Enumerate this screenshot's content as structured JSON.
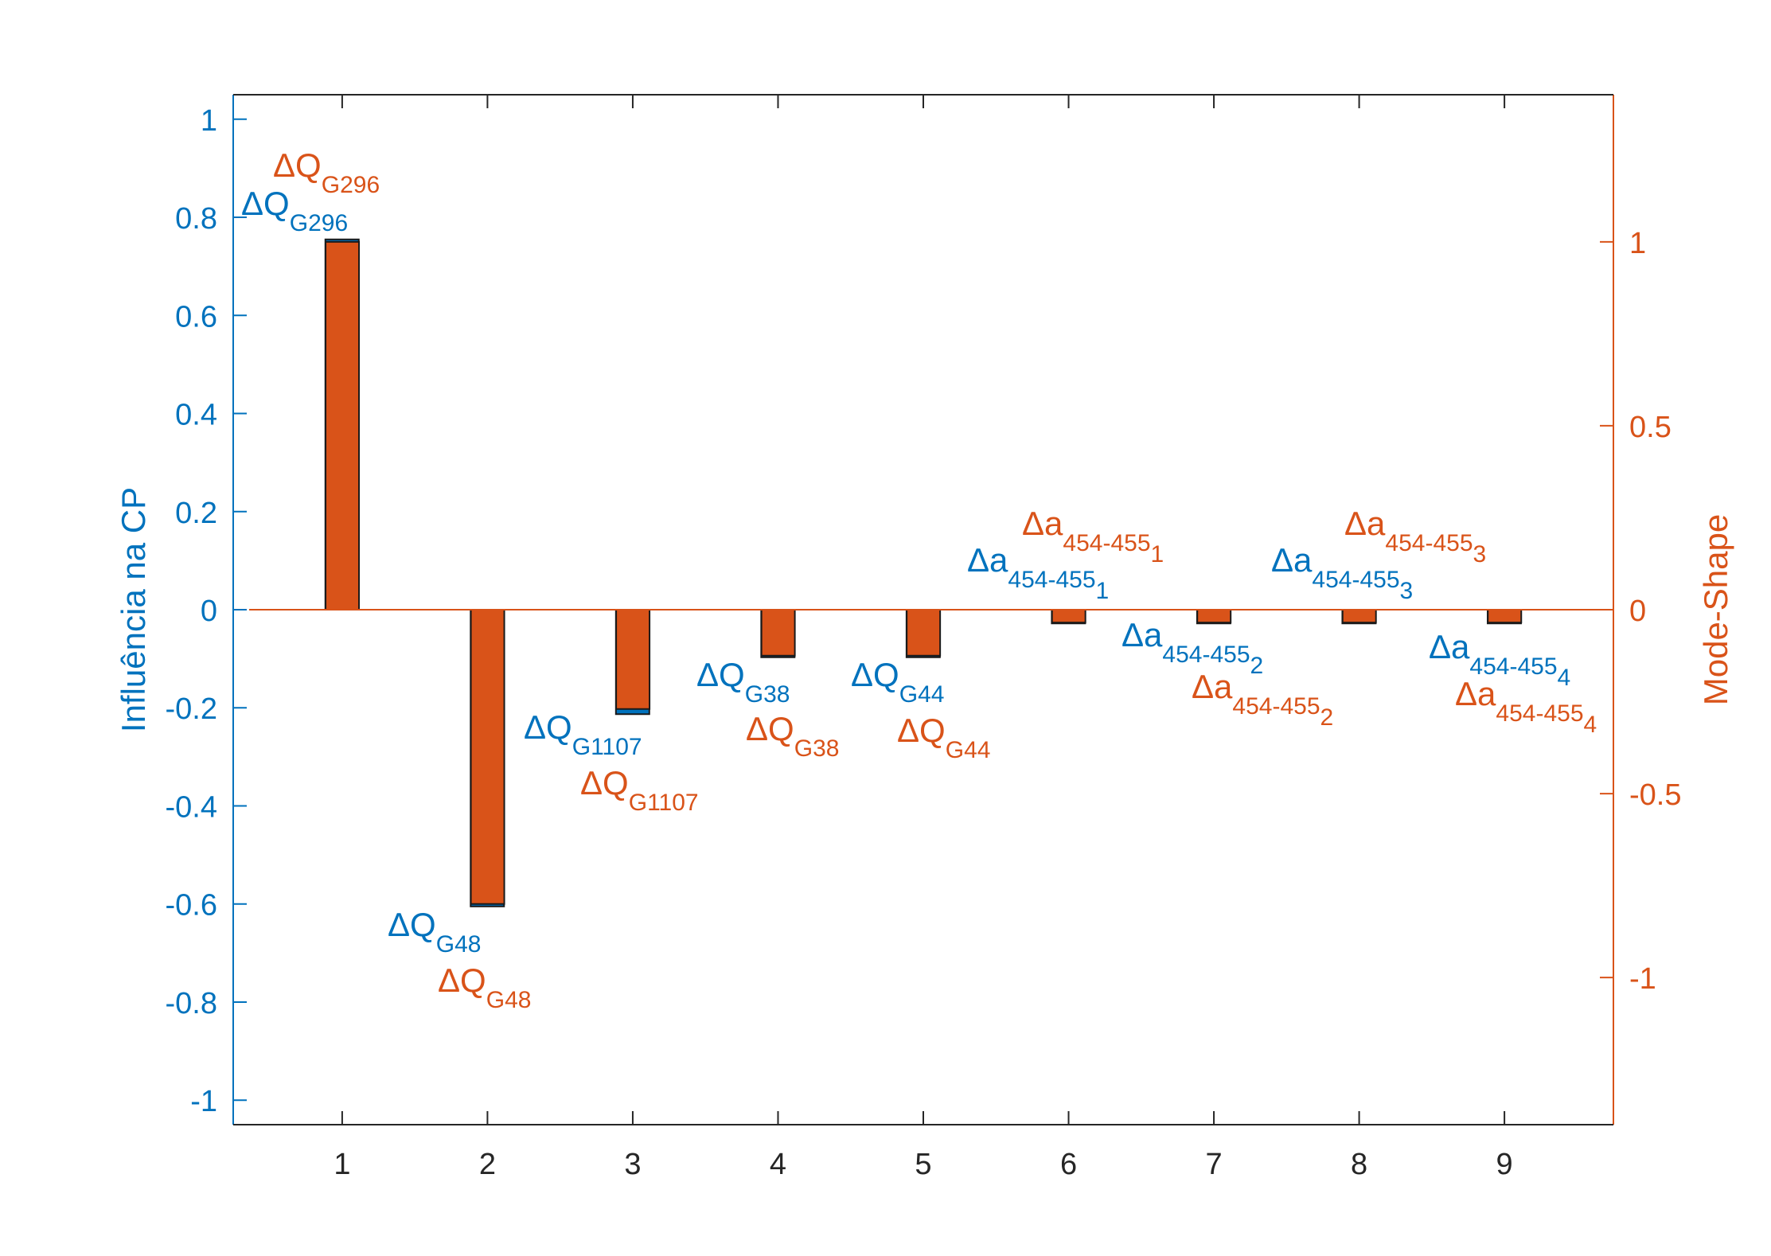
{
  "chart_data": {
    "type": "bar",
    "categories": [
      "1",
      "2",
      "3",
      "4",
      "5",
      "6",
      "7",
      "8",
      "9"
    ],
    "series": [
      {
        "axis": "left",
        "color": "#0072BD",
        "values": [
          0.755,
          -0.605,
          -0.213,
          -0.097,
          -0.097,
          -0.028,
          -0.028,
          -0.028,
          -0.028
        ]
      },
      {
        "axis": "right",
        "color": "#D95319",
        "values": [
          1.0,
          -0.8,
          -0.27,
          -0.125,
          -0.125,
          -0.035,
          -0.035,
          -0.035,
          -0.035
        ]
      }
    ],
    "ylabel_left": "Influência na CP",
    "ylabel_right": "Mode-Shape",
    "ylim_left": [
      -1.05,
      1.05
    ],
    "ylim_right": [
      -1.4,
      1.4
    ],
    "yticks_left": [
      -1,
      -0.8,
      -0.6,
      -0.4,
      -0.2,
      0,
      0.2,
      0.4,
      0.6,
      0.8,
      1
    ],
    "ytick_labels_left": [
      "-1",
      "-0.8",
      "-0.6",
      "-0.4",
      "-0.2",
      "0",
      "0.2",
      "0.4",
      "0.6",
      "0.8",
      "1"
    ],
    "yticks_right": [
      -1,
      -0.5,
      0,
      0.5,
      1
    ],
    "ytick_labels_right": [
      "-1",
      "-0.5",
      "0",
      "0.5",
      "1"
    ],
    "baseline_color": "#D95319",
    "grid": false,
    "legend": "none",
    "annotations": [
      {
        "series": 0,
        "category": 1,
        "main": "ΔQ",
        "sub": "G296",
        "sub2": ""
      },
      {
        "series": 1,
        "category": 1,
        "main": "ΔQ",
        "sub": "G296",
        "sub2": ""
      },
      {
        "series": 0,
        "category": 2,
        "main": "ΔQ",
        "sub": "G48",
        "sub2": ""
      },
      {
        "series": 1,
        "category": 2,
        "main": "ΔQ",
        "sub": "G48",
        "sub2": ""
      },
      {
        "series": 0,
        "category": 3,
        "main": "ΔQ",
        "sub": "G1107",
        "sub2": ""
      },
      {
        "series": 1,
        "category": 3,
        "main": "ΔQ",
        "sub": "G1107",
        "sub2": ""
      },
      {
        "series": 0,
        "category": 4,
        "main": "ΔQ",
        "sub": "G38",
        "sub2": ""
      },
      {
        "series": 1,
        "category": 4,
        "main": "ΔQ",
        "sub": "G38",
        "sub2": ""
      },
      {
        "series": 0,
        "category": 5,
        "main": "ΔQ",
        "sub": "G44",
        "sub2": ""
      },
      {
        "series": 1,
        "category": 5,
        "main": "ΔQ",
        "sub": "G44",
        "sub2": ""
      },
      {
        "series": 0,
        "category": 6,
        "main": "Δa",
        "sub": "454-455",
        "sub2": "1"
      },
      {
        "series": 1,
        "category": 6,
        "main": "Δa",
        "sub": "454-455",
        "sub2": "1"
      },
      {
        "series": 0,
        "category": 7,
        "main": "Δa",
        "sub": "454-455",
        "sub2": "2"
      },
      {
        "series": 1,
        "category": 7,
        "main": "Δa",
        "sub": "454-455",
        "sub2": "2"
      },
      {
        "series": 0,
        "category": 8,
        "main": "Δa",
        "sub": "454-455",
        "sub2": "3"
      },
      {
        "series": 1,
        "category": 8,
        "main": "Δa",
        "sub": "454-455",
        "sub2": "3"
      },
      {
        "series": 0,
        "category": 9,
        "main": "Δa",
        "sub": "454-455",
        "sub2": "4"
      },
      {
        "series": 1,
        "category": 9,
        "main": "Δa",
        "sub": "454-455",
        "sub2": "4"
      }
    ]
  }
}
